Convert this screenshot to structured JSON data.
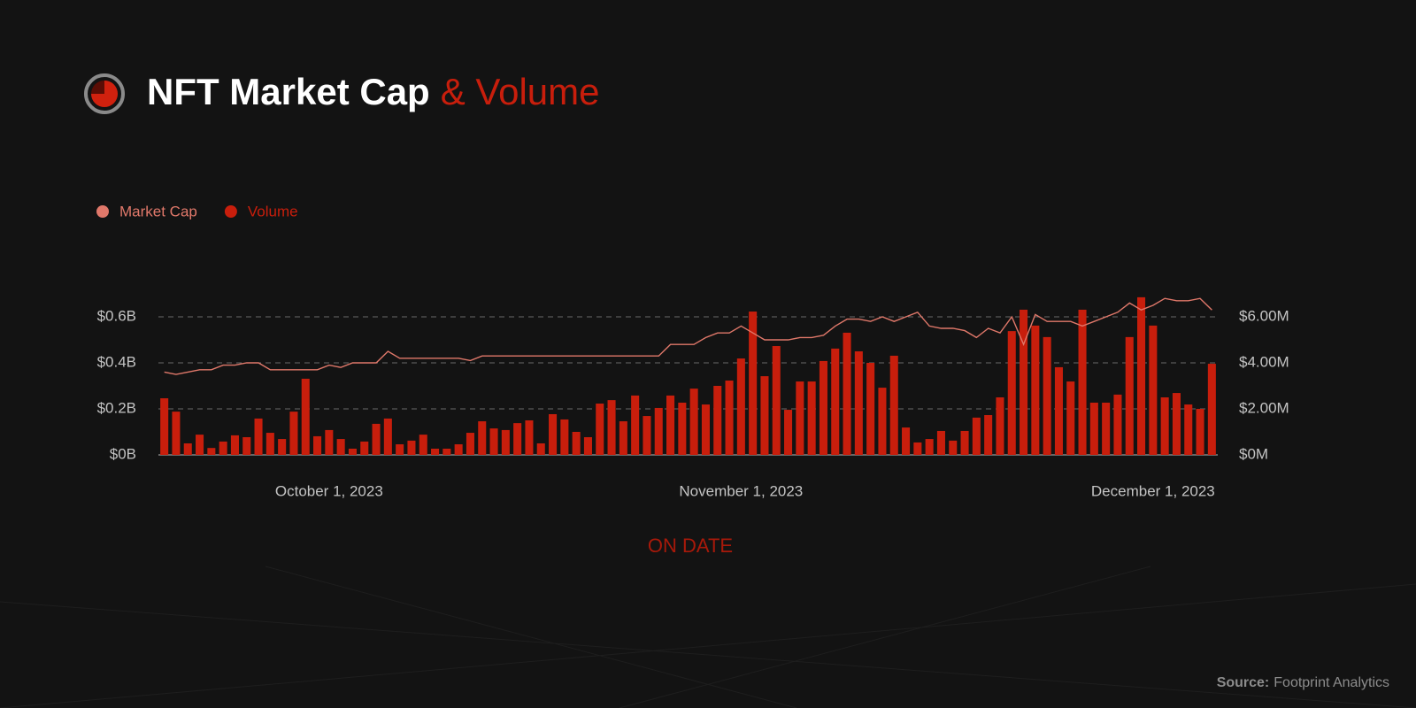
{
  "chart_data": {
    "type": "bar-line",
    "title": "NFT Market Cap",
    "title_highlight": "& Volume",
    "x_label": "ON DATE",
    "source_label": "Source:",
    "source": "Footprint Analytics",
    "categories": [
      null,
      null,
      null,
      null,
      null,
      null,
      null,
      null,
      null,
      null,
      null,
      null,
      null,
      null,
      "October 1, 2023",
      null,
      null,
      null,
      null,
      null,
      null,
      null,
      null,
      null,
      null,
      null,
      null,
      null,
      null,
      null,
      null,
      null,
      null,
      null,
      null,
      null,
      null,
      null,
      null,
      null,
      null,
      null,
      null,
      null,
      null,
      null,
      null,
      null,
      null,
      "November 1, 2023",
      null,
      null,
      null,
      null,
      null,
      null,
      null,
      null,
      null,
      null,
      null,
      null,
      null,
      null,
      null,
      null,
      null,
      null,
      null,
      null,
      null,
      null,
      null,
      null,
      null,
      null,
      null,
      null,
      null,
      null,
      null,
      null,
      null,
      null,
      "December 1, 2023",
      null,
      null,
      null,
      null,
      null
    ],
    "series": [
      {
        "name": "Market Cap",
        "color": "#e0786a",
        "kind": "line",
        "axis": "y",
        "values": [
          0.36,
          0.35,
          0.36,
          0.37,
          0.37,
          0.39,
          0.39,
          0.4,
          0.4,
          0.37,
          0.37,
          0.37,
          0.37,
          0.37,
          0.39,
          0.38,
          0.4,
          0.4,
          0.4,
          0.45,
          0.42,
          0.42,
          0.42,
          0.42,
          0.42,
          0.42,
          0.41,
          0.43,
          0.43,
          0.43,
          0.43,
          0.43,
          0.43,
          0.43,
          0.43,
          0.43,
          0.43,
          0.43,
          0.43,
          0.43,
          0.43,
          0.43,
          0.43,
          0.48,
          0.48,
          0.48,
          0.51,
          0.53,
          0.53,
          0.56,
          0.53,
          0.5,
          0.5,
          0.5,
          0.51,
          0.51,
          0.52,
          0.56,
          0.59,
          0.59,
          0.58,
          0.6,
          0.58,
          0.6,
          0.62,
          0.56,
          0.55,
          0.55,
          0.54,
          0.51,
          0.55,
          0.53,
          0.6,
          0.48,
          0.61,
          0.58,
          0.58,
          0.58,
          0.56,
          0.58,
          0.6,
          0.62,
          0.66,
          0.63,
          0.65,
          0.68,
          0.67,
          0.67,
          0.68,
          0.63
        ]
      },
      {
        "name": "Volume",
        "color": "#c81e0c",
        "kind": "bar",
        "axis": "y2",
        "values": [
          2.46,
          1.88,
          0.5,
          0.88,
          0.3,
          0.58,
          0.85,
          0.77,
          1.58,
          0.96,
          0.69,
          1.88,
          3.31,
          0.81,
          1.08,
          0.69,
          0.27,
          0.58,
          1.35,
          1.58,
          0.46,
          0.62,
          0.88,
          0.27,
          0.27,
          0.46,
          0.96,
          1.46,
          1.15,
          1.08,
          1.38,
          1.5,
          0.5,
          1.77,
          1.54,
          1.0,
          0.77,
          2.23,
          2.38,
          1.46,
          2.58,
          1.69,
          2.04,
          2.58,
          2.27,
          2.88,
          2.19,
          3.0,
          3.23,
          4.19,
          6.23,
          3.42,
          4.73,
          1.96,
          3.19,
          3.19,
          4.08,
          4.62,
          5.31,
          4.5,
          4.0,
          2.92,
          4.31,
          1.19,
          0.54,
          0.69,
          1.04,
          0.62,
          1.04,
          1.62,
          1.73,
          2.5,
          5.38,
          6.31,
          5.62,
          5.12,
          3.81,
          3.19,
          6.31,
          2.27,
          2.27,
          2.62,
          5.12,
          6.85,
          5.62,
          2.5,
          2.69,
          2.19,
          2.0,
          3.96
        ]
      }
    ],
    "ylim": [
      0,
      0.7
    ],
    "yticks": [
      {
        "value": 0,
        "label": "$0B"
      },
      {
        "value": 0.2,
        "label": "$0.2B"
      },
      {
        "value": 0.4,
        "label": "$0.4B"
      },
      {
        "value": 0.6,
        "label": "$0.6B"
      }
    ],
    "y2lim": [
      0,
      7
    ],
    "y2ticks": [
      {
        "value": 0,
        "label": "$0M"
      },
      {
        "value": 2,
        "label": "$2.00M"
      },
      {
        "value": 4,
        "label": "$4.00M"
      },
      {
        "value": 6,
        "label": "$6.00M"
      }
    ],
    "grid": true
  }
}
